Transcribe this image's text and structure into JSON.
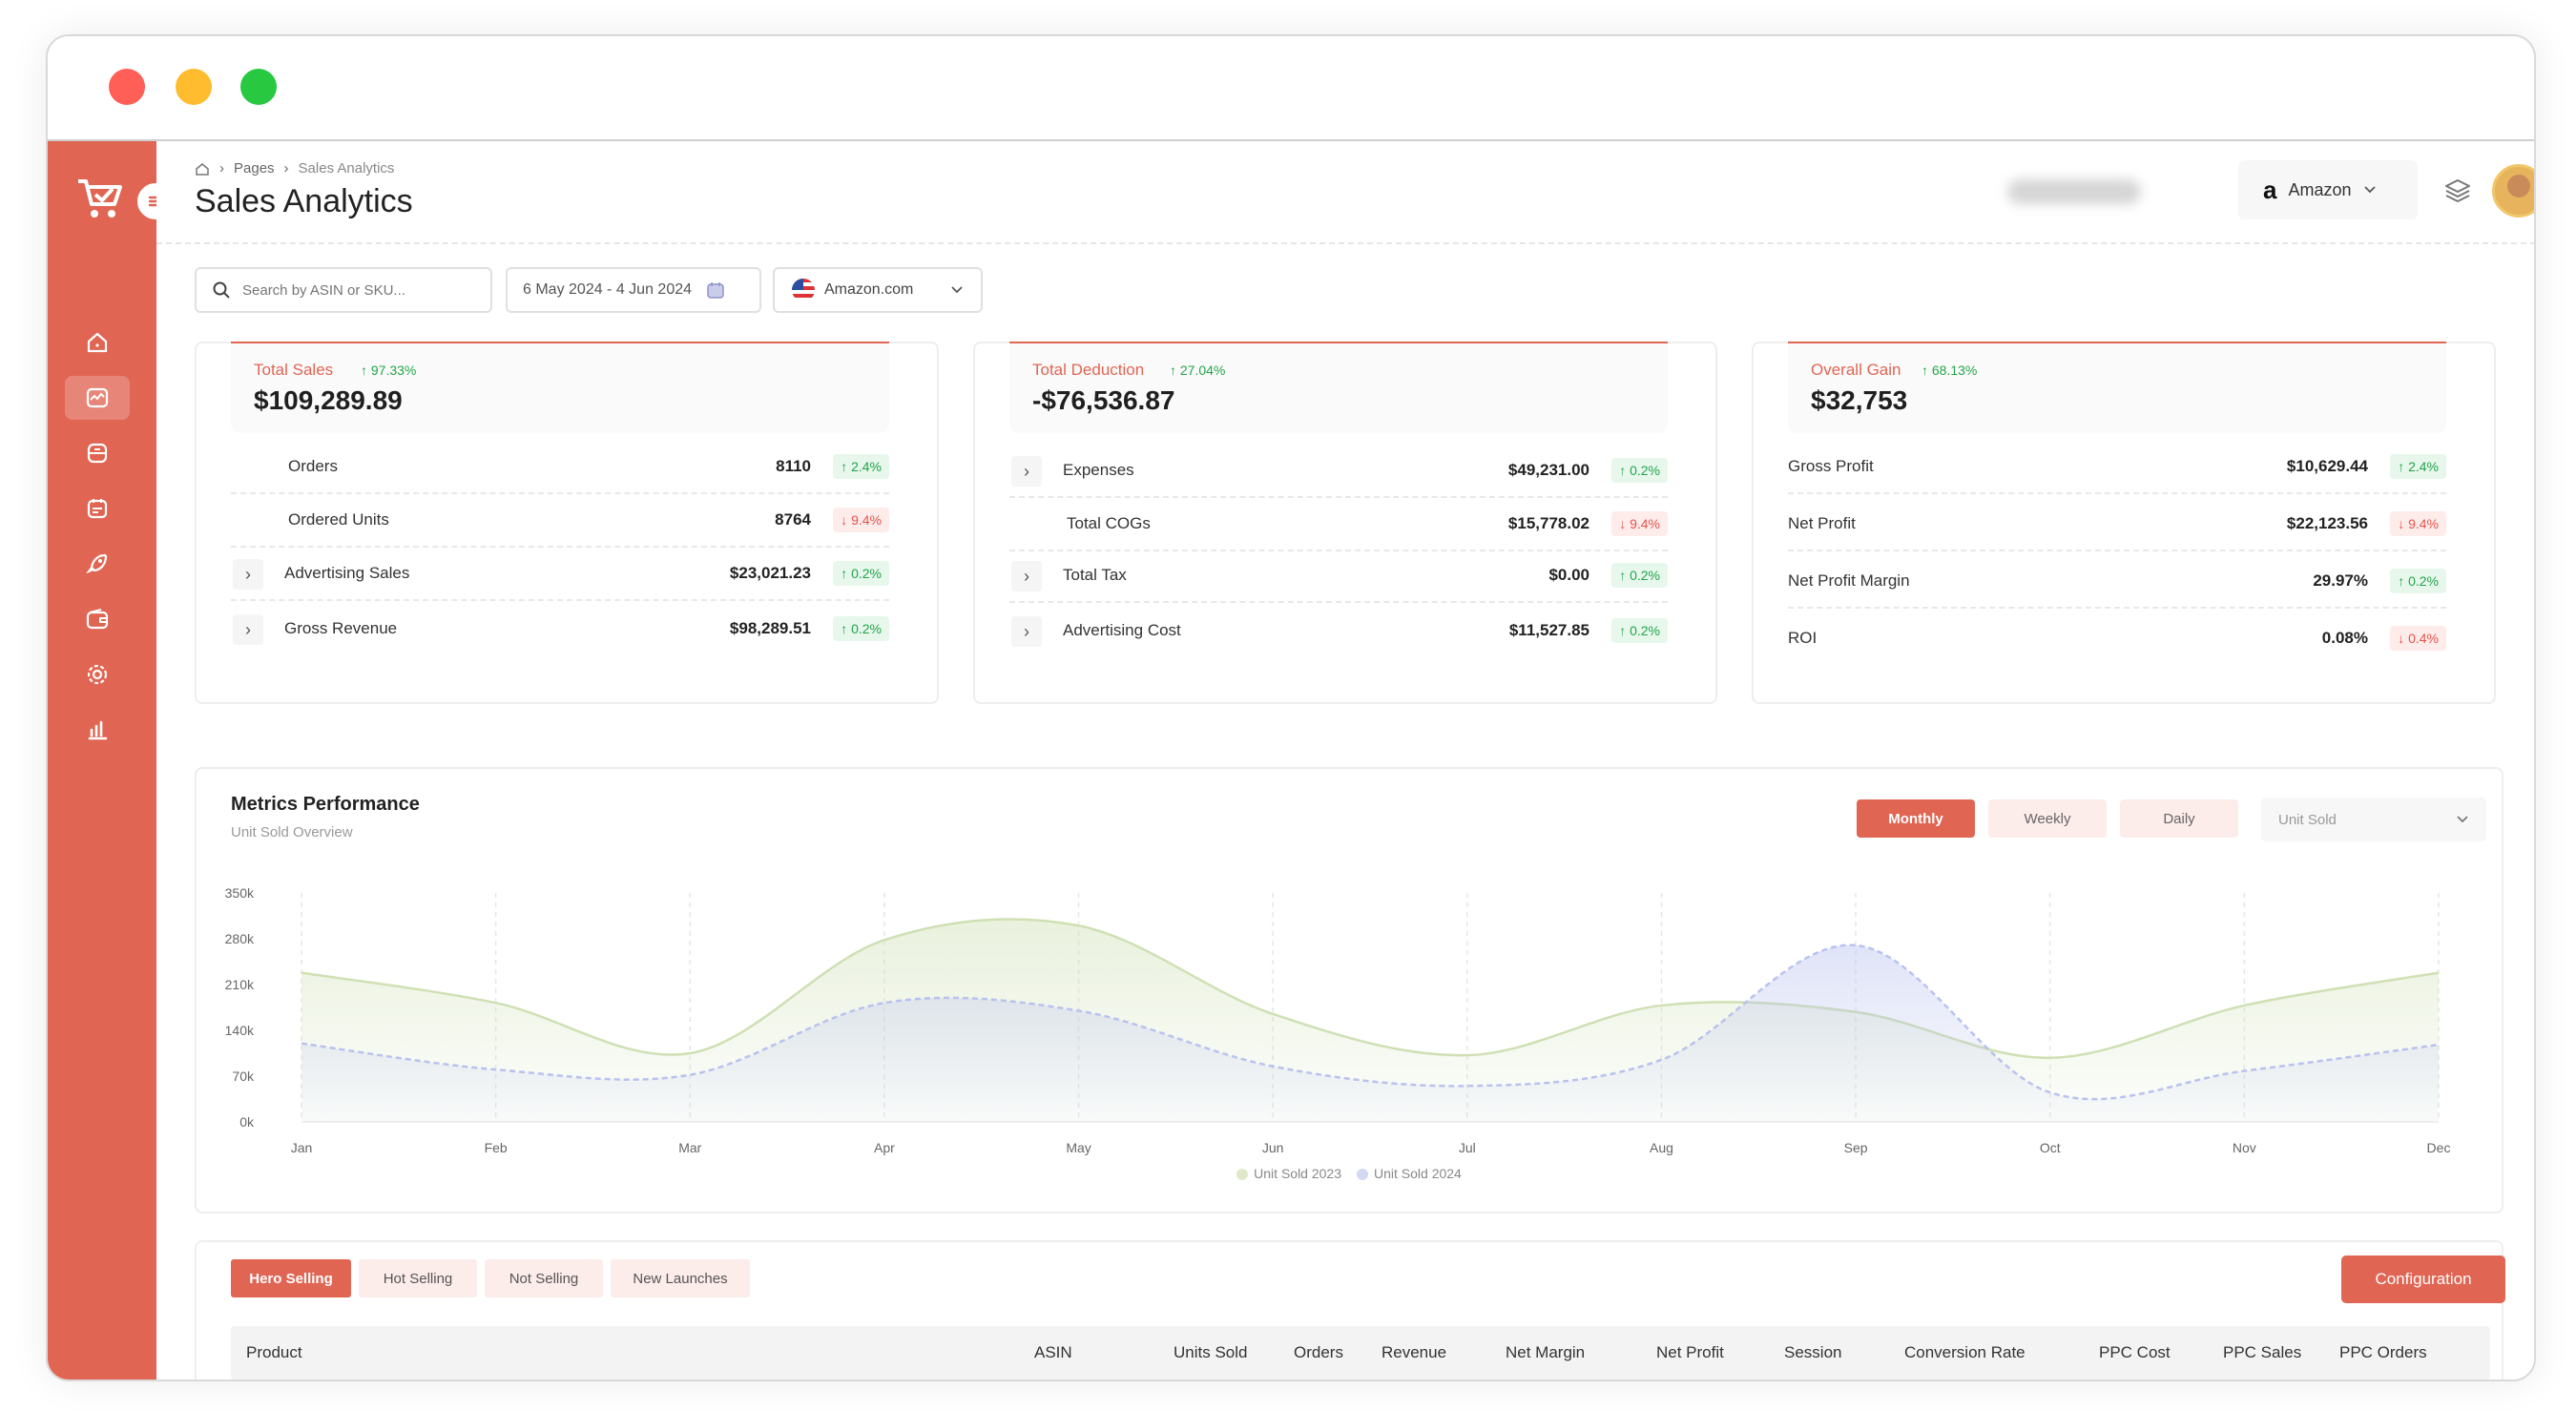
{
  "breadcrumb": {
    "pages": "Pages",
    "current": "Sales Analytics"
  },
  "page_title": "Sales Analytics",
  "header": {
    "marketplace_label": "Amazon"
  },
  "filters": {
    "search_placeholder": "Search by ASIN or SKU...",
    "date_range": "6 May 2024 - 4 Jun 2024",
    "marketplace": "Amazon.com"
  },
  "cards": [
    {
      "label": "Total Sales",
      "change": "97.33%",
      "total": "$109,289.89",
      "rows": [
        {
          "name": "Orders",
          "value": "8110",
          "change": "2.4%",
          "dir": "up",
          "expandable": false
        },
        {
          "name": "Ordered Units",
          "value": "8764",
          "change": "9.4%",
          "dir": "down",
          "expandable": false
        },
        {
          "name": "Advertising Sales",
          "value": "$23,021.23",
          "change": "0.2%",
          "dir": "up",
          "expandable": true
        },
        {
          "name": "Gross Revenue",
          "value": "$98,289.51",
          "change": "0.2%",
          "dir": "up",
          "expandable": true
        }
      ]
    },
    {
      "label": "Total Deduction",
      "change": "27.04%",
      "total": "-$76,536.87",
      "rows": [
        {
          "name": "Expenses",
          "value": "$49,231.00",
          "change": "0.2%",
          "dir": "up",
          "expandable": true
        },
        {
          "name": "Total COGs",
          "value": "$15,778.02",
          "change": "9.4%",
          "dir": "down",
          "expandable": false
        },
        {
          "name": "Total Tax",
          "value": "$0.00",
          "change": "0.2%",
          "dir": "up",
          "expandable": true
        },
        {
          "name": "Advertising Cost",
          "value": "$11,527.85",
          "change": "0.2%",
          "dir": "up",
          "expandable": true
        }
      ]
    },
    {
      "label": "Overall Gain",
      "change": "68.13%",
      "total": "$32,753",
      "rows": [
        {
          "name": "Gross Profit",
          "value": "$10,629.44",
          "change": "2.4%",
          "dir": "up",
          "expandable": false
        },
        {
          "name": "Net Profit",
          "value": "$22,123.56",
          "change": "9.4%",
          "dir": "down",
          "expandable": false
        },
        {
          "name": "Net Profit Margin",
          "value": "29.97%",
          "change": "0.2%",
          "dir": "up",
          "expandable": false
        },
        {
          "name": "ROI",
          "value": "0.08%",
          "change": "0.4%",
          "dir": "down",
          "expandable": false
        }
      ]
    }
  ],
  "performance": {
    "title": "Metrics Performance",
    "subtitle": "Unit Sold Overview",
    "tabs": [
      "Monthly",
      "Weekly",
      "Daily"
    ],
    "active_tab": "Monthly",
    "metric_select": "Unit Sold"
  },
  "chart_data": {
    "type": "area",
    "categories": [
      "Jan",
      "Feb",
      "Mar",
      "Apr",
      "May",
      "Jun",
      "Jul",
      "Aug",
      "Sep",
      "Oct",
      "Nov",
      "Dec"
    ],
    "y_ticks": [
      "0k",
      "70k",
      "140k",
      "210k",
      "280k",
      "350k"
    ],
    "ylim": [
      0,
      350000
    ],
    "series": [
      {
        "name": "Unit Sold 2023",
        "color": "#cfe0b4",
        "values": [
          228000,
          182000,
          105000,
          278000,
          300000,
          165000,
          102000,
          178000,
          168000,
          98000,
          178000,
          228000
        ]
      },
      {
        "name": "Unit Sold 2024",
        "color": "#b9c2ee",
        "values": [
          120000,
          80000,
          72000,
          182000,
          170000,
          85000,
          55000,
          95000,
          270000,
          45000,
          78000,
          118000
        ]
      }
    ],
    "legend_position": "bottom",
    "grid": "vertical-dashed"
  },
  "products": {
    "tabs": [
      "Hero Selling",
      "Hot Selling",
      "Not Selling",
      "New Launches"
    ],
    "active_tab": "Hero Selling",
    "config_label": "Configuration",
    "columns": [
      "Product",
      "ASIN",
      "Units Sold",
      "Orders",
      "Revenue",
      "Net Margin",
      "Net Profit",
      "Session",
      "Conversion Rate",
      "PPC Cost",
      "PPC Sales",
      "PPC Orders"
    ]
  },
  "colors": {
    "accent": "#e06553",
    "up": "#22a54a",
    "down": "#e5534b"
  }
}
